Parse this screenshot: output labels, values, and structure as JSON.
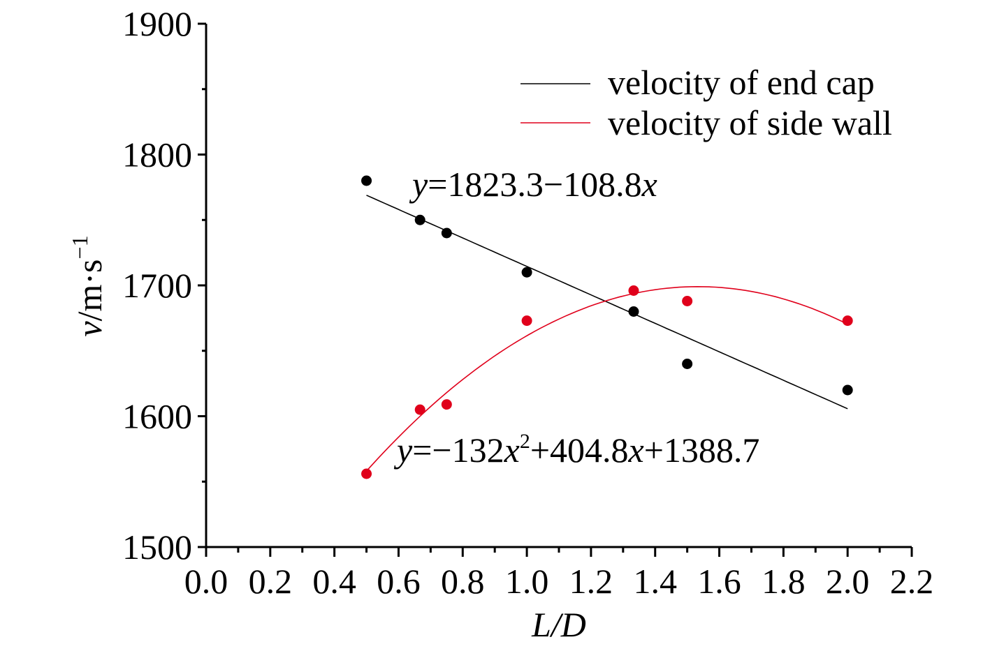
{
  "chart_data": {
    "type": "scatter",
    "xlabel": "L/D",
    "ylabel_parts": {
      "var": "v",
      "unit": "/m·s",
      "exp": "−1"
    },
    "xlim": [
      0.0,
      2.2
    ],
    "ylim": [
      1500,
      1900
    ],
    "x_ticks": [
      "0.0",
      "0.2",
      "0.4",
      "0.6",
      "0.8",
      "1.0",
      "1.2",
      "1.4",
      "1.6",
      "1.8",
      "2.0",
      "2.2"
    ],
    "y_ticks": [
      "1500",
      "1600",
      "1700",
      "1800",
      "1900"
    ],
    "grid": false,
    "legend_position": "top-right",
    "series": [
      {
        "name": "velocity of end cap",
        "color": "#000000",
        "x": [
          0.5,
          0.667,
          0.75,
          1.0,
          1.333,
          1.5,
          2.0
        ],
        "y": [
          1780,
          1750,
          1740,
          1710,
          1680,
          1640,
          1620
        ],
        "fit": {
          "kind": "linear",
          "a": 1823.3,
          "b": -108.8,
          "x_range": [
            0.5,
            2.0
          ]
        }
      },
      {
        "name": "velocity of side wall",
        "color": "#e0001b",
        "x": [
          0.5,
          0.667,
          0.75,
          1.0,
          1.333,
          1.5,
          2.0
        ],
        "y": [
          1556,
          1605,
          1609,
          1673,
          1696,
          1688,
          1673
        ],
        "fit": {
          "kind": "quadratic",
          "a2": -132,
          "a1": 404.8,
          "a0": 1388.7,
          "x_range": [
            0.5,
            2.0
          ]
        }
      }
    ],
    "annotations": {
      "eq1": {
        "y": "y",
        "eq": "=1823.3−108.8",
        "x": "x"
      },
      "eq2": {
        "y": "y",
        "eq1": "=−132",
        "x1": "x",
        "sup": "2",
        "eq2": "+404.8",
        "x2": "x",
        "eq3": "+1388.7"
      }
    }
  }
}
